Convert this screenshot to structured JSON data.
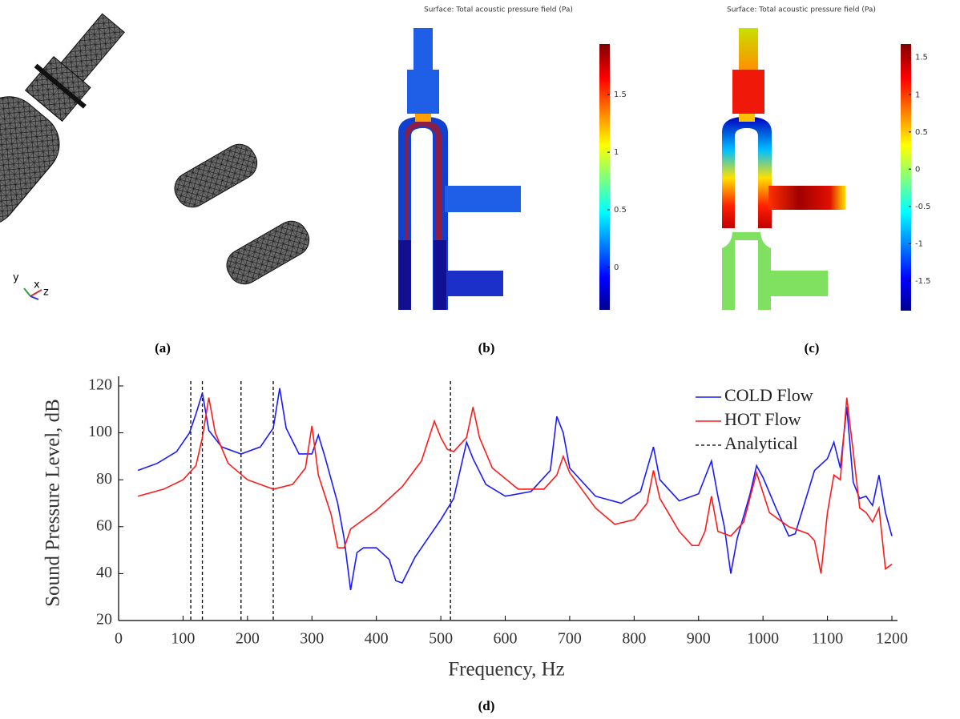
{
  "figure": {
    "panel_labels": [
      "(a)",
      "(b)",
      "(c)",
      "(d)"
    ],
    "panel_a": {
      "axis_labels": [
        "y",
        "x",
        "z"
      ]
    },
    "panel_b": {
      "title": "Surface: Total acoustic pressure field (Pa)",
      "clim": [
        -0.37,
        1.94
      ],
      "cticks": [
        0,
        0.5,
        1,
        1.5
      ]
    },
    "panel_c": {
      "title": "Surface: Total acoustic pressure field (Pa)",
      "clim": [
        -1.9,
        1.68
      ],
      "cticks": [
        -1.5,
        -1,
        -0.5,
        0,
        0.5,
        1,
        1.5
      ]
    }
  },
  "chart_data": {
    "type": "line",
    "xlabel": "Frequency, Hz",
    "ylabel": "Sound Pressure Level, dB",
    "xlim": [
      0,
      1200
    ],
    "ylim": [
      20,
      120
    ],
    "xticks": [
      0,
      100,
      200,
      300,
      400,
      500,
      600,
      700,
      800,
      900,
      1000,
      1100,
      1200
    ],
    "yticks": [
      20,
      40,
      60,
      80,
      100,
      120
    ],
    "legend": "upper right",
    "series": [
      {
        "name": "COLD Flow",
        "color": "#1a1aff",
        "x": [
          30,
          60,
          90,
          110,
          120,
          130,
          140,
          160,
          190,
          220,
          240,
          250,
          260,
          280,
          300,
          310,
          320,
          340,
          350,
          360,
          370,
          380,
          400,
          420,
          430,
          440,
          460,
          480,
          500,
          520,
          540,
          550,
          570,
          600,
          640,
          670,
          680,
          690,
          700,
          740,
          780,
          810,
          830,
          840,
          870,
          900,
          920,
          930,
          940,
          950,
          960,
          980,
          990,
          1000,
          1020,
          1040,
          1050,
          1060,
          1080,
          1100,
          1110,
          1120,
          1130,
          1140,
          1150,
          1160,
          1170,
          1180,
          1190,
          1200
        ],
        "values": [
          84,
          87,
          92,
          100,
          108,
          117,
          101,
          94,
          91,
          94,
          102,
          119,
          102,
          91,
          91,
          99,
          90,
          70,
          55,
          33,
          49,
          51,
          51,
          46,
          37,
          36,
          47,
          55,
          63,
          72,
          96,
          89,
          78,
          73,
          75,
          84,
          107,
          100,
          85,
          73,
          70,
          75,
          94,
          80,
          71,
          74,
          88,
          73,
          60,
          40,
          55,
          74,
          86,
          81,
          68,
          56,
          57,
          66,
          84,
          89,
          96,
          85,
          111,
          79,
          72,
          73,
          69,
          82,
          66,
          56
        ]
      },
      {
        "name": "HOT Flow",
        "color": "#ff1a1a",
        "x": [
          30,
          70,
          100,
          120,
          130,
          140,
          150,
          170,
          200,
          240,
          270,
          290,
          300,
          310,
          330,
          340,
          350,
          360,
          400,
          440,
          470,
          490,
          500,
          510,
          520,
          540,
          550,
          560,
          580,
          620,
          660,
          680,
          690,
          700,
          740,
          770,
          800,
          820,
          830,
          840,
          870,
          890,
          900,
          910,
          920,
          930,
          950,
          970,
          990,
          1010,
          1040,
          1070,
          1080,
          1090,
          1100,
          1110,
          1120,
          1130,
          1140,
          1150,
          1160,
          1170,
          1180,
          1190,
          1200
        ],
        "values": [
          73,
          76,
          80,
          86,
          98,
          115,
          100,
          87,
          80,
          76,
          78,
          85,
          103,
          82,
          65,
          51,
          51,
          59,
          67,
          77,
          88,
          105,
          98,
          93,
          92,
          98,
          111,
          98,
          85,
          76,
          76,
          82,
          90,
          83,
          68,
          61,
          63,
          70,
          84,
          72,
          58,
          52,
          52,
          58,
          73,
          58,
          56,
          62,
          83,
          66,
          60,
          57,
          54,
          40,
          66,
          82,
          80,
          115,
          92,
          68,
          66,
          62,
          68,
          42,
          44
        ]
      }
    ],
    "analytical": {
      "name": "Analytical",
      "color": "#000000",
      "x": [
        112,
        130,
        190,
        240,
        515
      ]
    }
  }
}
